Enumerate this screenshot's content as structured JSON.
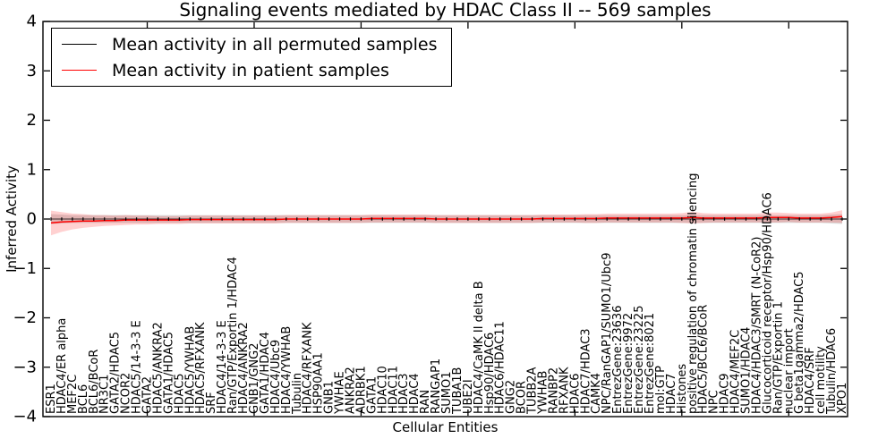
{
  "chart_data": {
    "type": "line",
    "title": "Signaling events mediated by HDAC Class II -- 569 samples",
    "xlabel": "Cellular Entities",
    "ylabel": "Inferred Activity",
    "ylim": [
      -4,
      4
    ],
    "yticks": [
      4,
      3,
      2,
      1,
      0,
      -1,
      -2,
      -3,
      -4
    ],
    "grid": false,
    "legend_position": "upper left",
    "x_major_tick_indices": [
      9,
      19,
      29,
      39,
      49,
      59,
      69
    ],
    "categories": [
      "ESR1",
      "HDAC4/ER alpha",
      "MEF2C",
      "BCL6",
      "BCL6/BCoR",
      "NR3C1",
      "GATA2/HDAC5",
      "NCOR2",
      "HDAC5/14-3-3 E",
      "GATA2",
      "HDAC5/ANKRA2",
      "GATA1/HDAC5",
      "HDAC5",
      "HDAC5/YWHAB",
      "HDAC5/RFXANK",
      "SRF",
      "HDAC4/14-3-3 E",
      "Ran/GTP/Exportin 1/HDAC4",
      "HDAC4/ANKRA2",
      "GNB1/GNG2",
      "GATA1/HDAC4",
      "HDAC4/Ubc9",
      "HDAC4/YWHAB",
      "Tubulin",
      "HDAC4/RFXANK",
      "HSP90AA1",
      "GNB1",
      "YWHAE",
      "ANKRA2",
      "ADRBK1",
      "GATA1",
      "HDAC10",
      "HDAC11",
      "HDAC3",
      "HDAC4",
      "RAN",
      "RANGAP1",
      "SUMO1",
      "TUBA1B",
      "UBE2I",
      "HDAC4/CaMK II delta B",
      "Hsp90/HDAC6",
      "HDAC6/HDAC11",
      "GNG2",
      "BCOR",
      "TUBB2A",
      "YWHAB",
      "RANBP2",
      "RFXANK",
      "HDAC6",
      "HDAC7/HDAC3",
      "CAMK4",
      "NPC/RanGAP1/SUMO1/Ubc9",
      "EntrezGene:23636",
      "EntrezGene:9972",
      "EntrezGene:23225",
      "EntrezGene:8021",
      "mol:GTP",
      "HDAC7",
      "Histones",
      "positive regulation of chromatin silencing",
      "HDAC5/BCL6/BCoR",
      "NPC",
      "HDAC9",
      "HDAC4/MEF2C",
      "SUMO1/HDAC4",
      "HDAC4/HDAC3/SMRT (N-CoR2)",
      "Glucocorticoid receptor/Hsp90/HDAC6",
      "Ran/GTP/Exportin 1",
      "nuclear import",
      "G beta1gamma2/HDAC5",
      "HDAC4/SRF",
      "cell motility",
      "Tubulin/HDAC6",
      "XPO1"
    ],
    "series": [
      {
        "name": "Mean activity in all permuted samples",
        "color": "#000000",
        "band_color": "rgba(90,90,90,0.22)",
        "values": [
          0,
          0,
          0,
          0,
          0,
          0,
          0,
          0,
          0,
          0,
          0,
          0,
          0,
          0,
          0,
          0,
          0,
          0,
          0,
          0,
          0,
          0,
          0,
          0,
          0,
          0,
          0,
          0,
          0,
          0,
          0,
          0,
          0,
          0,
          0,
          0,
          0,
          0,
          0,
          0,
          0,
          0,
          0,
          0,
          0,
          0,
          0,
          0,
          0,
          0,
          0,
          0,
          0,
          0,
          0,
          0,
          0,
          0,
          0,
          0,
          0,
          0,
          0,
          0,
          0,
          0,
          0,
          0,
          0,
          0,
          0,
          0,
          0,
          0,
          0
        ],
        "band": [
          0.1,
          0.09,
          0.08,
          0.08,
          0.08,
          0.08,
          0.08,
          0.08,
          0.08,
          0.08,
          0.08,
          0.08,
          0.08,
          0.08,
          0.08,
          0.08,
          0.08,
          0.08,
          0.08,
          0.08,
          0.08,
          0.08,
          0.08,
          0.08,
          0.08,
          0.08,
          0.08,
          0.08,
          0.08,
          0.08,
          0.08,
          0.08,
          0.08,
          0.08,
          0.08,
          0.08,
          0.08,
          0.08,
          0.08,
          0.08,
          0.08,
          0.08,
          0.08,
          0.08,
          0.08,
          0.08,
          0.08,
          0.08,
          0.08,
          0.08,
          0.08,
          0.08,
          0.08,
          0.08,
          0.08,
          0.08,
          0.08,
          0.08,
          0.08,
          0.08,
          0.08,
          0.08,
          0.08,
          0.08,
          0.08,
          0.08,
          0.08,
          0.08,
          0.08,
          0.08,
          0.08,
          0.08,
          0.08,
          0.09,
          0.1
        ]
      },
      {
        "name": "Mean activity in patient samples",
        "color": "#ff0000",
        "band_color": "rgba(255,0,0,0.18)",
        "values": [
          -0.08,
          -0.06,
          -0.05,
          -0.04,
          -0.04,
          -0.03,
          -0.03,
          -0.02,
          -0.02,
          -0.02,
          -0.02,
          -0.02,
          -0.02,
          -0.01,
          -0.01,
          -0.01,
          -0.01,
          -0.01,
          -0.01,
          -0.01,
          -0.01,
          -0.01,
          0,
          0,
          0,
          0,
          0,
          0,
          0,
          0,
          0.01,
          0.01,
          0.01,
          0.01,
          0.01,
          0.01,
          0,
          0,
          0,
          0,
          0,
          0,
          0,
          0,
          0,
          0,
          0.01,
          0.01,
          0.01,
          0.01,
          0.01,
          0.01,
          0.02,
          0.02,
          0.02,
          0.02,
          0.02,
          0.02,
          0.02,
          0.02,
          0.03,
          0.02,
          0.02,
          0.02,
          0.02,
          0.02,
          0.02,
          0.03,
          0.03,
          0.03,
          0.02,
          0.02,
          0.02,
          0.03,
          0.05
        ],
        "band": [
          0.25,
          0.2,
          0.16,
          0.14,
          0.12,
          0.11,
          0.1,
          0.1,
          0.09,
          0.09,
          0.08,
          0.08,
          0.08,
          0.08,
          0.08,
          0.08,
          0.08,
          0.08,
          0.08,
          0.08,
          0.08,
          0.08,
          0.08,
          0.08,
          0.08,
          0.08,
          0.08,
          0.08,
          0.08,
          0.08,
          0.08,
          0.08,
          0.08,
          0.08,
          0.08,
          0.08,
          0.08,
          0.08,
          0.08,
          0.08,
          0.08,
          0.08,
          0.08,
          0.08,
          0.08,
          0.08,
          0.08,
          0.08,
          0.08,
          0.08,
          0.09,
          0.09,
          0.09,
          0.09,
          0.09,
          0.09,
          0.09,
          0.09,
          0.09,
          0.1,
          0.12,
          0.1,
          0.09,
          0.09,
          0.09,
          0.09,
          0.09,
          0.1,
          0.1,
          0.09,
          0.09,
          0.09,
          0.09,
          0.1,
          0.13
        ]
      }
    ]
  }
}
